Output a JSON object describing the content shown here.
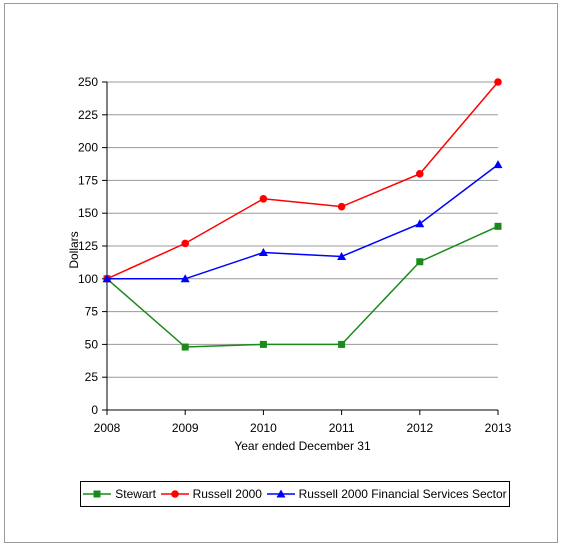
{
  "chart_data": {
    "type": "line",
    "x": [
      "2008",
      "2009",
      "2010",
      "2011",
      "2012",
      "2013"
    ],
    "xlabel": "Year ended December 31",
    "ylabel": "Dollars",
    "ylim": [
      0,
      250
    ],
    "yticks": [
      0,
      25,
      50,
      75,
      100,
      125,
      150,
      175,
      200,
      225,
      250
    ],
    "grid": true,
    "legend_position": "bottom",
    "series": [
      {
        "name": "Stewart",
        "color": "#1a8a1a",
        "marker": "square",
        "values": [
          100,
          48,
          50,
          50,
          113,
          140
        ]
      },
      {
        "name": "Russell 2000",
        "color": "#ff0000",
        "marker": "circle",
        "values": [
          100,
          127,
          161,
          155,
          180,
          250
        ]
      },
      {
        "name": "Russell 2000 Financial Services Sector",
        "color": "#0000ff",
        "marker": "triangle",
        "values": [
          100,
          100,
          120,
          117,
          142,
          187
        ]
      }
    ]
  }
}
